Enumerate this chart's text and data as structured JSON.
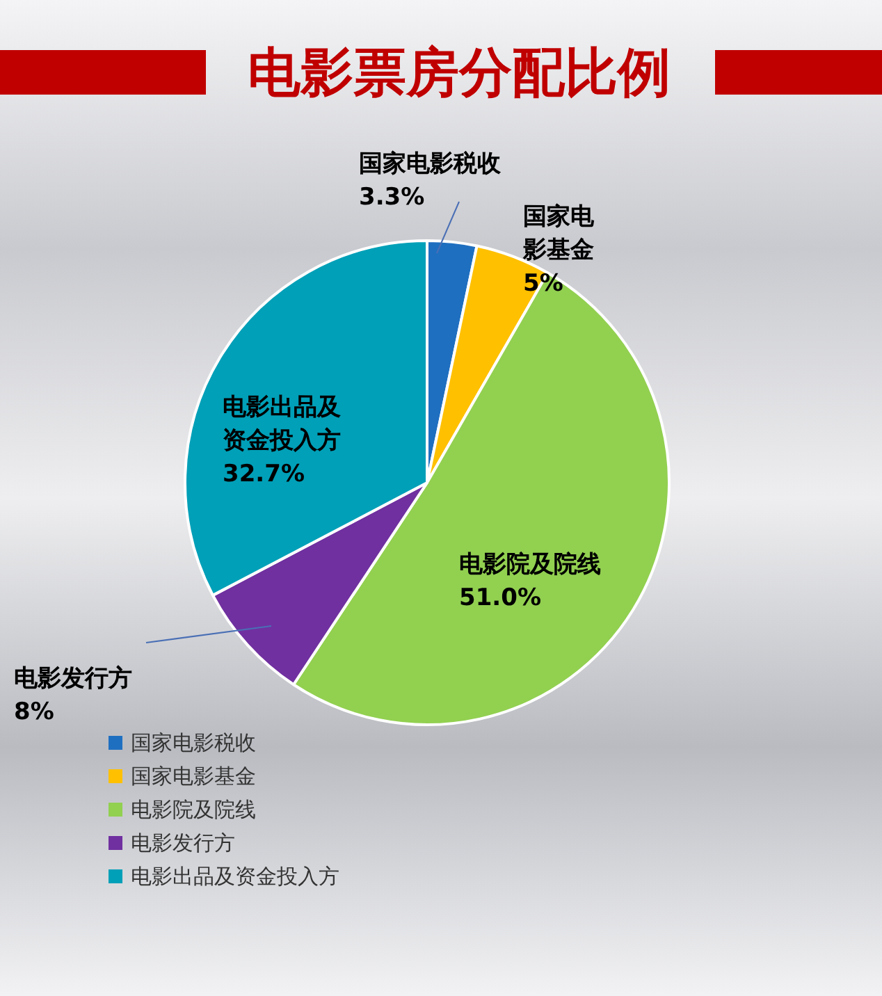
{
  "chart_data": {
    "type": "pie",
    "title": "电影票房分配比例",
    "categories": [
      "国家电影税收",
      "国家电影基金",
      "电影院及院线",
      "电影发行方",
      "电影出品及资金投入方"
    ],
    "values": [
      3.3,
      5,
      51.0,
      8,
      32.7
    ],
    "value_labels": [
      "3.3%",
      "5%",
      "51.0%",
      "8%",
      "32.7%"
    ],
    "colors": [
      "#1f6fc0",
      "#ffc000",
      "#92d050",
      "#7030a0",
      "#00a0b8"
    ],
    "legend": "bottom left"
  }
}
